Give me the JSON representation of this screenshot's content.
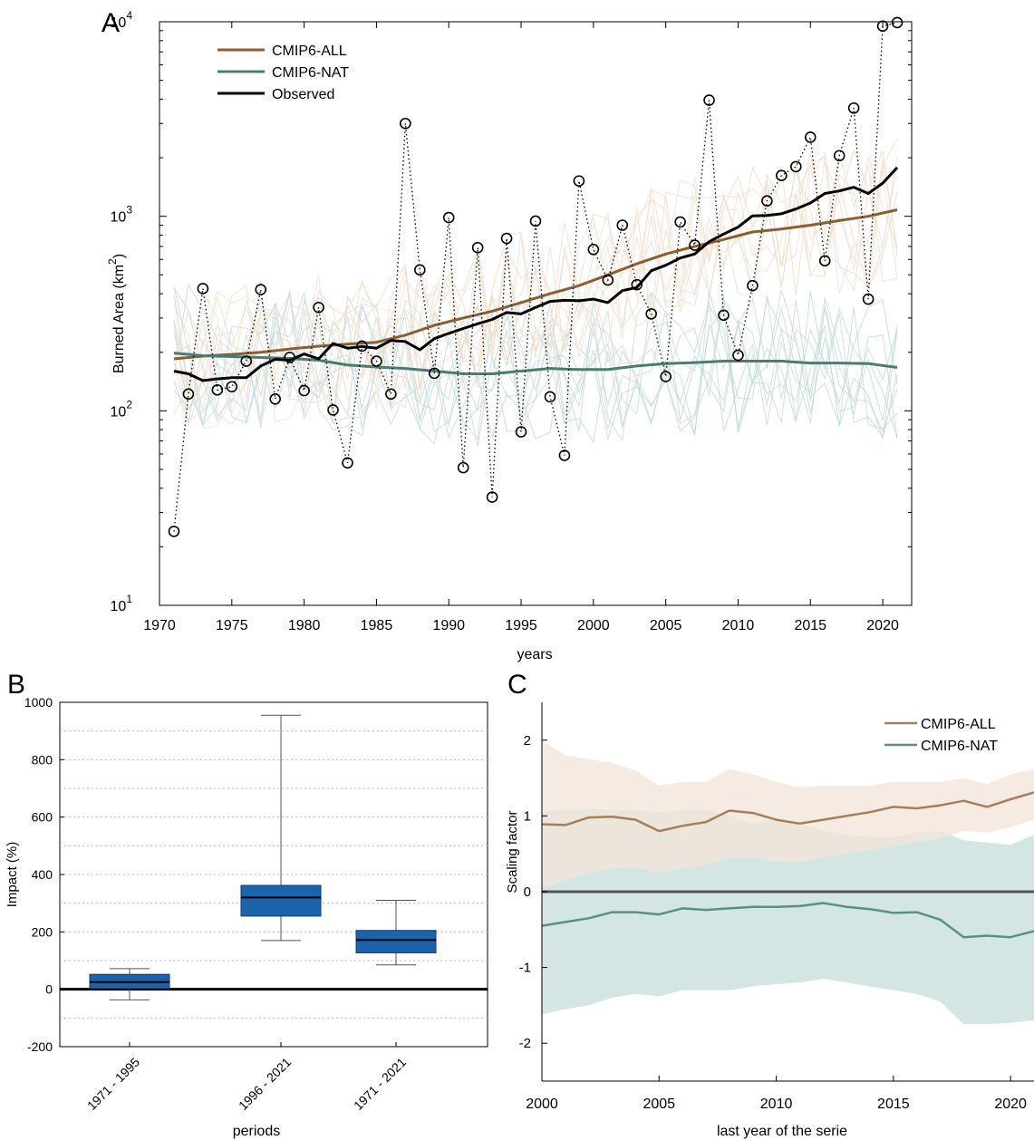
{
  "panel_letters": {
    "a": "A",
    "b": "B",
    "c": "C"
  },
  "chart_data": [
    {
      "panel": "A",
      "type": "line",
      "xlabel": "years",
      "ylabel": "Burned Area (km",
      "ylabel_sup": "2",
      "ylabel_close": ")",
      "yscale": "log",
      "xlim": [
        1970,
        2022
      ],
      "ylim": [
        10,
        10000
      ],
      "xticks": [
        1970,
        1975,
        1980,
        1985,
        1990,
        1995,
        2000,
        2005,
        2010,
        2015,
        2020
      ],
      "yticks": [
        {
          "base": "10",
          "exp": "1",
          "value": 10
        },
        {
          "base": "10",
          "exp": "2",
          "value": 100
        },
        {
          "base": "10",
          "exp": "3",
          "value": 1000
        },
        {
          "base": "10",
          "exp": "4",
          "value": 10000
        }
      ],
      "legend": {
        "position": "top-left",
        "entries": [
          "CMIP6-ALL",
          "CMIP6-NAT",
          "Observed"
        ]
      },
      "colors": {
        "all": "#8b5e34",
        "nat": "#4a7c72",
        "obs": "#000000",
        "all_light": "#f1d9c4",
        "nat_light": "#bcd9d3"
      },
      "observed_points": {
        "x": [
          1971,
          1972,
          1973,
          1974,
          1975,
          1976,
          1977,
          1978,
          1979,
          1980,
          1981,
          1982,
          1983,
          1984,
          1985,
          1986,
          1987,
          1988,
          1989,
          1990,
          1991,
          1992,
          1993,
          1994,
          1995,
          1996,
          1997,
          1998,
          1999,
          2000,
          2001,
          2002,
          2003,
          2004,
          2005,
          2006,
          2007,
          2008,
          2009,
          2010,
          2011,
          2012,
          2013,
          2014,
          2015,
          2016,
          2017,
          2018,
          2019,
          2020,
          2021
        ],
        "y": [
          24,
          122,
          425,
          128,
          133,
          180,
          420,
          115,
          188,
          127,
          340,
          101,
          54,
          215,
          180,
          122,
          3000,
          530,
          156,
          985,
          51,
          690,
          36,
          770,
          78,
          945,
          118,
          59,
          1520,
          675,
          470,
          900,
          445,
          315,
          150,
          935,
          710,
          3950,
          310,
          193,
          440,
          1200,
          1620,
          1800,
          2550,
          590,
          2050,
          3600,
          375,
          9500,
          9900
        ]
      },
      "series": [
        {
          "name": "CMIP6-ALL",
          "x": [
            1971,
            1973,
            1975,
            1977,
            1979,
            1981,
            1983,
            1985,
            1987,
            1989,
            1991,
            1993,
            1995,
            1997,
            1999,
            2001,
            2003,
            2005,
            2007,
            2009,
            2011,
            2013,
            2015,
            2017,
            2019,
            2021
          ],
          "y": [
            185,
            191,
            195,
            200,
            208,
            215,
            220,
            225,
            245,
            275,
            300,
            325,
            360,
            400,
            440,
            500,
            570,
            640,
            700,
            760,
            830,
            860,
            900,
            950,
            1000,
            1080
          ]
        },
        {
          "name": "CMIP6-NAT",
          "x": [
            1971,
            1973,
            1975,
            1977,
            1979,
            1981,
            1983,
            1985,
            1987,
            1989,
            1991,
            1993,
            1995,
            1997,
            1999,
            2001,
            2003,
            2005,
            2007,
            2009,
            2011,
            2013,
            2015,
            2017,
            2019,
            2021
          ],
          "y": [
            198,
            192,
            190,
            188,
            186,
            182,
            172,
            168,
            165,
            160,
            155,
            155,
            160,
            165,
            163,
            163,
            170,
            175,
            177,
            180,
            180,
            180,
            176,
            176,
            175,
            167
          ]
        },
        {
          "name": "Observed",
          "x": [
            1971,
            1972,
            1973,
            1974,
            1975,
            1976,
            1977,
            1978,
            1979,
            1980,
            1981,
            1982,
            1983,
            1984,
            1985,
            1986,
            1987,
            1988,
            1989,
            1990,
            1991,
            1992,
            1993,
            1994,
            1995,
            1996,
            1997,
            1998,
            1999,
            2000,
            2001,
            2002,
            2003,
            2004,
            2005,
            2006,
            2007,
            2008,
            2009,
            2010,
            2011,
            2012,
            2013,
            2014,
            2015,
            2016,
            2017,
            2018,
            2019,
            2020,
            2021
          ],
          "y": [
            160,
            155,
            143,
            146,
            148,
            148,
            170,
            184,
            182,
            196,
            185,
            222,
            210,
            214,
            210,
            230,
            227,
            206,
            235,
            250,
            265,
            280,
            295,
            320,
            315,
            340,
            365,
            370,
            368,
            375,
            360,
            415,
            430,
            525,
            560,
            610,
            640,
            740,
            810,
            880,
            1005,
            1010,
            1030,
            1090,
            1170,
            1310,
            1350,
            1410,
            1310,
            1480,
            1780
          ]
        }
      ]
    },
    {
      "panel": "B",
      "type": "box",
      "xlabel": "periods",
      "ylabel": "Impact (%)",
      "ylim": [
        -200,
        1000
      ],
      "yticks": [
        -200,
        0,
        200,
        400,
        600,
        800,
        1000
      ],
      "categories": [
        "1971 - 1995",
        "1996 - 2021",
        "1971 - 2021"
      ],
      "boxes": [
        {
          "whisker_low": -37,
          "q1": 3,
          "median": 25,
          "q3": 52,
          "whisker_high": 72
        },
        {
          "whisker_low": 170,
          "q1": 255,
          "median": 320,
          "q3": 362,
          "whisker_high": 955
        },
        {
          "whisker_low": 85,
          "q1": 127,
          "median": 172,
          "q3": 205,
          "whisker_high": 310
        }
      ],
      "box_color": "#1b63ab"
    },
    {
      "panel": "C",
      "type": "line",
      "xlabel": "last year of the serie",
      "ylabel": "Scaling factor",
      "xlim": [
        2000,
        2021
      ],
      "ylim": [
        -2.5,
        2.5
      ],
      "xticks": [
        2000,
        2005,
        2010,
        2015,
        2020
      ],
      "yticks": [
        -2,
        -1,
        0,
        1,
        2
      ],
      "legend": {
        "position": "top-right",
        "entries": [
          "CMIP6-ALL",
          "CMIP6-NAT"
        ]
      },
      "series": [
        {
          "name": "CMIP6-ALL",
          "color": "#a57f5a",
          "band_color": "#f3e4d8",
          "x": [
            2000,
            2001,
            2002,
            2003,
            2004,
            2005,
            2006,
            2007,
            2008,
            2009,
            2010,
            2011,
            2012,
            2013,
            2014,
            2015,
            2016,
            2017,
            2018,
            2019,
            2020,
            2021
          ],
          "y": [
            0.89,
            0.88,
            0.98,
            0.99,
            0.95,
            0.8,
            0.87,
            0.92,
            1.07,
            1.04,
            0.95,
            0.9,
            0.95,
            1.0,
            1.05,
            1.12,
            1.1,
            1.14,
            1.2,
            1.12,
            1.22,
            1.31
          ],
          "lower": [
            0.05,
            0.15,
            0.25,
            0.3,
            0.32,
            0.25,
            0.3,
            0.35,
            0.45,
            0.45,
            0.4,
            0.4,
            0.45,
            0.5,
            0.55,
            0.6,
            0.65,
            0.7,
            0.8,
            0.78,
            0.85,
            0.95
          ],
          "upper": [
            2.0,
            1.8,
            1.75,
            1.7,
            1.6,
            1.4,
            1.45,
            1.45,
            1.62,
            1.55,
            1.45,
            1.38,
            1.4,
            1.4,
            1.4,
            1.45,
            1.45,
            1.45,
            1.5,
            1.42,
            1.55,
            1.62
          ]
        },
        {
          "name": "CMIP6-NAT",
          "color": "#5a8f85",
          "band_color": "#d3e6e3",
          "x": [
            2000,
            2001,
            2002,
            2003,
            2004,
            2005,
            2006,
            2007,
            2008,
            2009,
            2010,
            2011,
            2012,
            2013,
            2014,
            2015,
            2016,
            2017,
            2018,
            2019,
            2020,
            2021
          ],
          "y": [
            -0.45,
            -0.4,
            -0.35,
            -0.27,
            -0.27,
            -0.3,
            -0.22,
            -0.24,
            -0.22,
            -0.2,
            -0.2,
            -0.19,
            -0.15,
            -0.2,
            -0.23,
            -0.28,
            -0.27,
            -0.37,
            -0.6,
            -0.58,
            -0.6,
            -0.52
          ],
          "lower": [
            -1.62,
            -1.55,
            -1.5,
            -1.4,
            -1.35,
            -1.38,
            -1.3,
            -1.3,
            -1.3,
            -1.25,
            -1.22,
            -1.2,
            -1.15,
            -1.2,
            -1.25,
            -1.3,
            -1.35,
            -1.45,
            -1.75,
            -1.75,
            -1.73,
            -1.7
          ],
          "upper": [
            1.05,
            1.08,
            1.1,
            1.08,
            1.08,
            1.05,
            1.08,
            1.08,
            1.0,
            0.9,
            0.95,
            0.9,
            0.8,
            0.75,
            0.72,
            0.72,
            0.78,
            0.8,
            0.68,
            0.65,
            0.62,
            0.75
          ]
        }
      ]
    }
  ]
}
